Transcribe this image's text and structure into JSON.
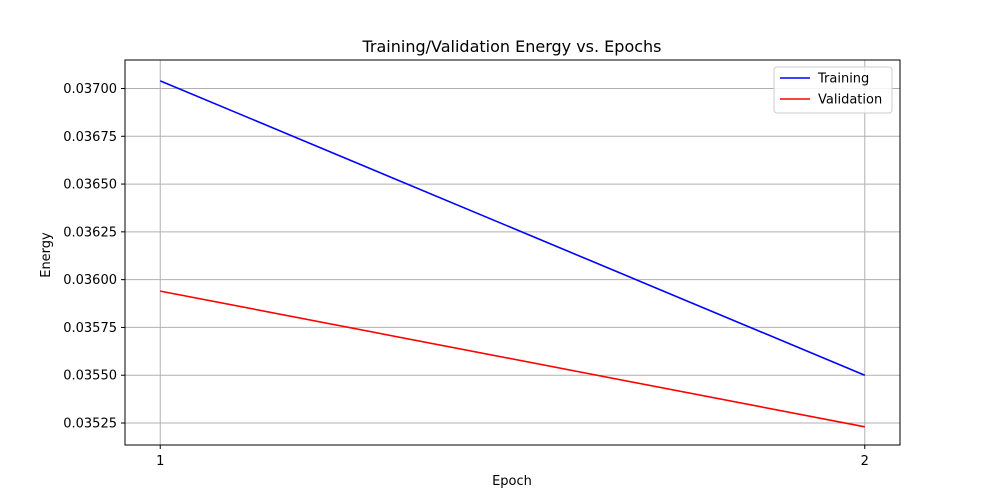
{
  "chart_data": {
    "type": "line",
    "title": "Training/Validation Energy vs. Epochs",
    "xlabel": "Epoch",
    "ylabel": "Energy",
    "x": [
      1,
      2
    ],
    "xticks": [
      "1",
      "2"
    ],
    "ylim": [
      0.035135,
      0.037149
    ],
    "xlim": [
      0.95,
      2.05
    ],
    "yticks": [
      "0.03525",
      "0.03550",
      "0.03575",
      "0.03600",
      "0.03625",
      "0.03650",
      "0.03675",
      "0.03700"
    ],
    "grid": true,
    "legend": "top-right",
    "series": [
      {
        "name": "Training",
        "values": [
          0.03704,
          0.0355
        ],
        "color": "#0000ff"
      },
      {
        "name": "Validation",
        "values": [
          0.03594,
          0.03523
        ],
        "color": "#ff0000"
      }
    ]
  }
}
